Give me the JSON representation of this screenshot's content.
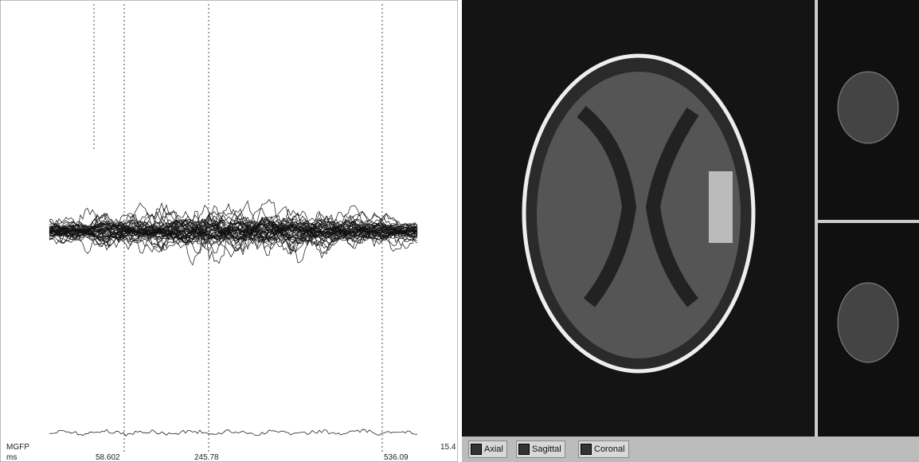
{
  "meg_panel": {
    "mgfp_label": "MGFP",
    "unit_label": "ms",
    "time_markers": [
      "58.602",
      "245.78",
      "536.09"
    ],
    "scale_value": "15.4"
  },
  "view_tabs": [
    "Axial",
    "Sagittal",
    "Coronal"
  ]
}
